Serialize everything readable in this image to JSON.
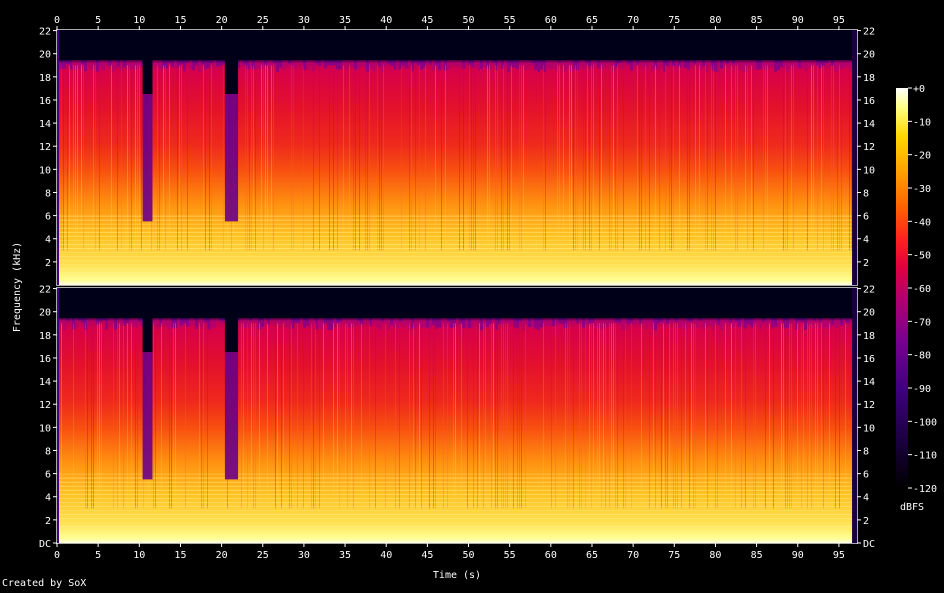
{
  "credit": "Created by SoX",
  "chart_data": {
    "type": "heatmap",
    "title": "",
    "xlabel": "Time (s)",
    "ylabel": "Frequency (kHz)",
    "xlim": [
      0,
      97.2
    ],
    "ylim": [
      0,
      22.05
    ],
    "x_ticks": [
      "0",
      "5",
      "10",
      "15",
      "20",
      "25",
      "30",
      "35",
      "40",
      "45",
      "50",
      "55",
      "60",
      "65",
      "70",
      "75",
      "80",
      "85",
      "90",
      "95"
    ],
    "x_tick_values": [
      0,
      5,
      10,
      15,
      20,
      25,
      30,
      35,
      40,
      45,
      50,
      55,
      60,
      65,
      70,
      75,
      80,
      85,
      90,
      95
    ],
    "channels": [
      {
        "name": "",
        "y_ticks": [
          "22",
          "20",
          "18",
          "16",
          "14",
          "12",
          "10",
          "8",
          "6",
          "4",
          "2"
        ],
        "y_tick_values": [
          22,
          20,
          18,
          16,
          14,
          12,
          10,
          8,
          6,
          4,
          2
        ]
      },
      {
        "name": "",
        "y_ticks": [
          "22",
          "20",
          "18",
          "16",
          "14",
          "12",
          "10",
          "8",
          "6",
          "4",
          "2",
          "DC"
        ],
        "y_tick_values": [
          22,
          20,
          18,
          16,
          14,
          12,
          10,
          8,
          6,
          4,
          2,
          0
        ]
      }
    ],
    "colorbar": {
      "label": "dBFS",
      "range": [
        -120,
        0
      ],
      "ticks": [
        "+0",
        "-10",
        "-20",
        "-30",
        "-40",
        "-50",
        "-60",
        "-70",
        "-80",
        "-90",
        "-100",
        "-110",
        "-120"
      ],
      "tick_values": [
        0,
        -10,
        -20,
        -30,
        -40,
        -50,
        -60,
        -70,
        -80,
        -90,
        -100,
        -110,
        -120
      ],
      "colors": [
        "#000000",
        "#1a0040",
        "#400080",
        "#7a0090",
        "#b00070",
        "#e00040",
        "#ff2020",
        "#ff6000",
        "#ffa000",
        "#ffd800",
        "#ffff80",
        "#ffffff"
      ]
    },
    "notes": "Stereo spectrogram; energy cuts off near 19.5 kHz; dips around 10.5-11.5 s and 20.5-22 s limited to about 5.5 kHz."
  }
}
